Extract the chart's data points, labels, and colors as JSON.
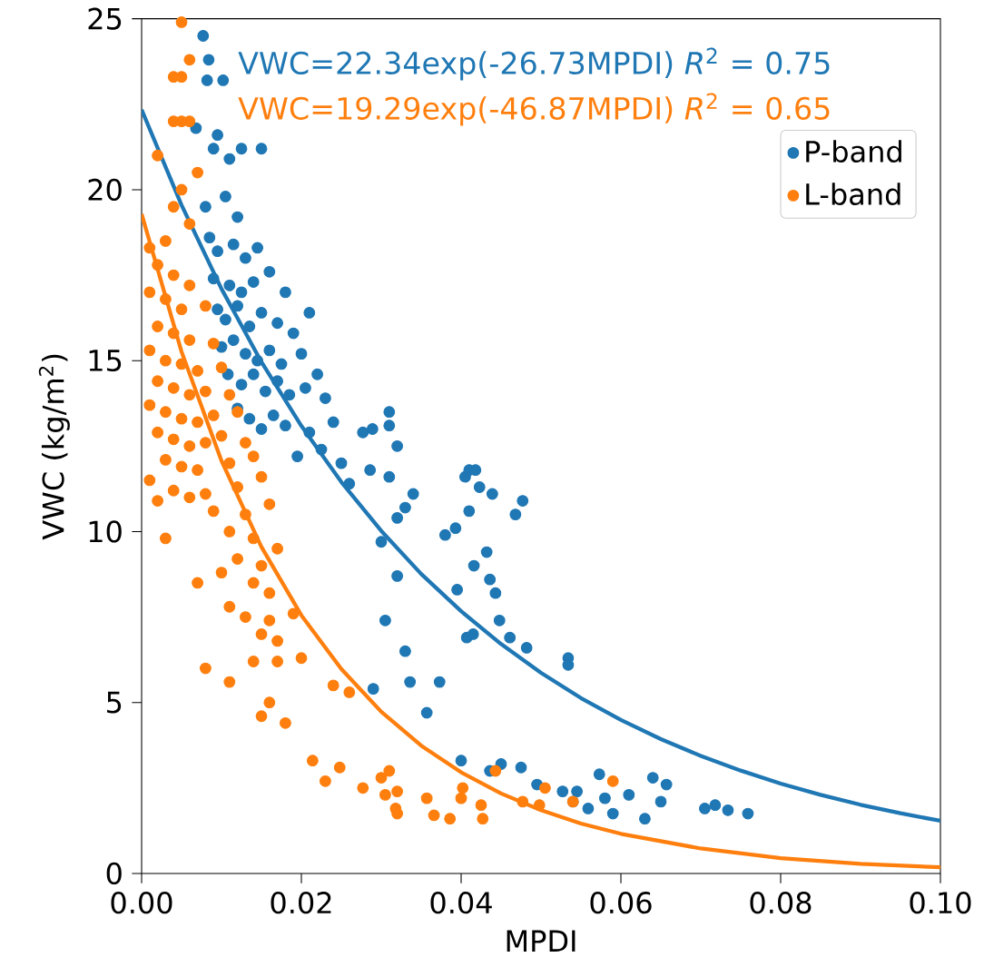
{
  "chart_data": {
    "type": "scatter",
    "xlabel": "MPDI",
    "ylabel": "VWC (kg/m$^{2}$)",
    "xlim": [
      0,
      0.1
    ],
    "ylim": [
      0,
      25
    ],
    "xticks": [
      {
        "value": 0,
        "label": "0.00"
      },
      {
        "value": 0.02,
        "label": "0.02"
      },
      {
        "value": 0.04,
        "label": "0.04"
      },
      {
        "value": 0.06,
        "label": "0.06"
      },
      {
        "value": 0.08,
        "label": "0.08"
      },
      {
        "value": 0.1,
        "label": "0.10"
      }
    ],
    "yticks": [
      0,
      5,
      10,
      15,
      20,
      25
    ],
    "legend": "top right",
    "grid": false,
    "annotations": [
      "VWC=22.34exp(-26.73MPDI) *R*$^{2}$ = 0.75",
      "VWC=19.29exp(-46.87MPDI) *R*$^{2}$ = 0.65"
    ],
    "series": [
      {
        "name": "P-band",
        "color": "#1f77b4",
        "marker": "circle",
        "x": [
          0.0077,
          0.0084,
          0.0082,
          0.0102,
          0.0068,
          0.0095,
          0.009,
          0.0125,
          0.011,
          0.015,
          0.008,
          0.0105,
          0.012,
          0.0085,
          0.0095,
          0.0115,
          0.013,
          0.0145,
          0.009,
          0.011,
          0.0125,
          0.014,
          0.016,
          0.018,
          0.0095,
          0.0105,
          0.012,
          0.0135,
          0.015,
          0.017,
          0.019,
          0.021,
          0.01,
          0.0115,
          0.013,
          0.0145,
          0.016,
          0.0175,
          0.02,
          0.022,
          0.0108,
          0.0125,
          0.014,
          0.0155,
          0.017,
          0.0185,
          0.0205,
          0.023,
          0.012,
          0.0135,
          0.015,
          0.0165,
          0.018,
          0.021,
          0.024,
          0.0277,
          0.031,
          0.031,
          0.032,
          0.0289,
          0.0286,
          0.031,
          0.034,
          0.033,
          0.032,
          0.03,
          0.032,
          0.0305,
          0.033,
          0.038,
          0.0405,
          0.041,
          0.0418,
          0.0423,
          0.0439,
          0.041,
          0.0393,
          0.0432,
          0.0416,
          0.0436,
          0.0443,
          0.0468,
          0.0477,
          0.0395,
          0.0407,
          0.0415,
          0.0448,
          0.0461,
          0.0482,
          0.0373,
          0.0357,
          0.0534,
          0.0534,
          0.0336,
          0.029,
          0.04,
          0.045,
          0.0436,
          0.0475,
          0.0495,
          0.0527,
          0.0545,
          0.054,
          0.0559,
          0.0573,
          0.058,
          0.061,
          0.059,
          0.064,
          0.0657,
          0.065,
          0.063,
          0.0705,
          0.0718,
          0.0734,
          0.0759,
          0.025,
          0.026,
          0.0225,
          0.0195
        ],
        "values": [
          24.5,
          23.8,
          23.2,
          23.2,
          21.8,
          21.6,
          21.2,
          21.2,
          20.9,
          21.2,
          19.5,
          19.8,
          19.2,
          18.6,
          18.2,
          18.4,
          18.0,
          18.3,
          17.4,
          17.2,
          17.0,
          17.3,
          17.6,
          17.0,
          16.5,
          16.2,
          16.6,
          16.0,
          16.4,
          16.1,
          15.8,
          16.4,
          15.4,
          15.6,
          15.2,
          15.0,
          15.3,
          14.9,
          15.2,
          14.6,
          14.6,
          14.3,
          14.6,
          14.1,
          14.4,
          14.0,
          14.2,
          13.9,
          13.6,
          13.3,
          13.0,
          13.4,
          13.1,
          12.9,
          13.2,
          12.9,
          13.5,
          13.1,
          12.5,
          13.0,
          11.8,
          11.6,
          11.1,
          10.7,
          10.4,
          9.7,
          8.7,
          7.4,
          6.5,
          9.9,
          11.6,
          11.8,
          11.8,
          11.3,
          11.1,
          10.6,
          10.1,
          9.4,
          9.0,
          8.6,
          8.2,
          10.5,
          10.9,
          8.3,
          6.9,
          7.0,
          7.4,
          6.9,
          6.6,
          5.6,
          4.7,
          6.3,
          6.1,
          5.6,
          5.4,
          3.3,
          3.2,
          3.0,
          3.1,
          2.6,
          2.4,
          2.4,
          2.1,
          1.9,
          2.9,
          2.2,
          2.3,
          1.75,
          2.8,
          2.6,
          2.1,
          1.6,
          1.9,
          2.0,
          1.85,
          1.75,
          12.0,
          11.4,
          12.4,
          12.2
        ]
      },
      {
        "name": "L-band",
        "color": "#ff7f0e",
        "marker": "circle",
        "x": [
          0.005,
          0.006,
          0.004,
          0.005,
          0.004,
          0.005,
          0.006,
          0.002,
          0.007,
          0.005,
          0.004,
          0.006,
          0.003,
          0.001,
          0.002,
          0.004,
          0.006,
          0.001,
          0.003,
          0.005,
          0.008,
          0.002,
          0.004,
          0.006,
          0.009,
          0.001,
          0.003,
          0.005,
          0.007,
          0.01,
          0.002,
          0.004,
          0.006,
          0.008,
          0.011,
          0.001,
          0.003,
          0.005,
          0.007,
          0.009,
          0.012,
          0.002,
          0.004,
          0.006,
          0.008,
          0.01,
          0.013,
          0.003,
          0.005,
          0.007,
          0.011,
          0.014,
          0.001,
          0.004,
          0.006,
          0.008,
          0.012,
          0.015,
          0.002,
          0.009,
          0.013,
          0.016,
          0.011,
          0.014,
          0.017,
          0.012,
          0.015,
          0.01,
          0.014,
          0.016,
          0.011,
          0.013,
          0.016,
          0.019,
          0.015,
          0.017,
          0.014,
          0.017,
          0.02,
          0.008,
          0.011,
          0.016,
          0.024,
          0.026,
          0.015,
          0.018,
          0.003,
          0.007,
          0.0214,
          0.023,
          0.0248,
          0.0277,
          0.03,
          0.0305,
          0.032,
          0.032,
          0.031,
          0.0318,
          0.0357,
          0.0366,
          0.0386,
          0.04,
          0.0402,
          0.0425,
          0.0427,
          0.0443,
          0.0477,
          0.0498,
          0.0505,
          0.054,
          0.059
        ],
        "values": [
          24.9,
          23.8,
          23.3,
          23.3,
          22.0,
          22.0,
          22.0,
          21.0,
          20.5,
          20.0,
          19.5,
          19.0,
          18.5,
          18.3,
          17.8,
          17.5,
          17.2,
          17.0,
          16.8,
          16.5,
          16.6,
          16.0,
          15.8,
          15.6,
          15.5,
          15.3,
          15.0,
          14.9,
          14.7,
          14.8,
          14.4,
          14.2,
          14.0,
          14.1,
          14.0,
          13.7,
          13.5,
          13.3,
          13.2,
          13.4,
          13.5,
          12.9,
          12.7,
          12.5,
          12.6,
          12.8,
          12.6,
          12.1,
          11.9,
          11.8,
          12.0,
          12.2,
          11.5,
          11.2,
          11.0,
          11.1,
          11.3,
          11.6,
          10.9,
          10.6,
          10.5,
          10.8,
          10.0,
          9.8,
          9.5,
          9.2,
          9.0,
          8.8,
          8.5,
          8.2,
          7.8,
          7.5,
          7.4,
          7.6,
          7.0,
          6.8,
          6.2,
          6.2,
          6.3,
          6.0,
          5.6,
          5.0,
          5.5,
          5.3,
          4.6,
          4.4,
          9.8,
          8.5,
          3.3,
          2.7,
          3.1,
          2.5,
          2.8,
          2.3,
          2.4,
          1.75,
          3.0,
          1.9,
          2.2,
          1.7,
          1.6,
          2.2,
          2.5,
          2.0,
          1.6,
          3.0,
          2.1,
          2.0,
          2.5,
          2.1,
          2.7
        ]
      },
      {
        "color": "#1f77b4",
        "type": "line",
        "marker": "none",
        "x": [
          0,
          0.005,
          0.01,
          0.015,
          0.02,
          0.025,
          0.03,
          0.035,
          0.04,
          0.045,
          0.05,
          0.055,
          0.06,
          0.065,
          0.07,
          0.075,
          0.08,
          0.085,
          0.09,
          0.095,
          0.1
        ],
        "values": [
          22.34,
          19.55,
          17.1,
          14.96,
          13.09,
          11.45,
          10.02,
          8.76,
          7.67,
          6.71,
          5.87,
          5.13,
          4.49,
          3.93,
          3.44,
          3.01,
          2.63,
          2.3,
          2.01,
          1.76,
          1.54
        ]
      },
      {
        "color": "#ff7f0e",
        "type": "line",
        "marker": "none",
        "x": [
          0,
          0.005,
          0.01,
          0.015,
          0.02,
          0.025,
          0.03,
          0.035,
          0.04,
          0.045,
          0.05,
          0.055,
          0.06,
          0.07,
          0.08,
          0.09,
          0.1
        ],
        "values": [
          19.29,
          15.26,
          12.07,
          9.55,
          7.55,
          5.98,
          4.73,
          3.74,
          2.96,
          2.34,
          1.85,
          1.46,
          1.16,
          0.73,
          0.45,
          0.28,
          0.18
        ]
      }
    ]
  }
}
